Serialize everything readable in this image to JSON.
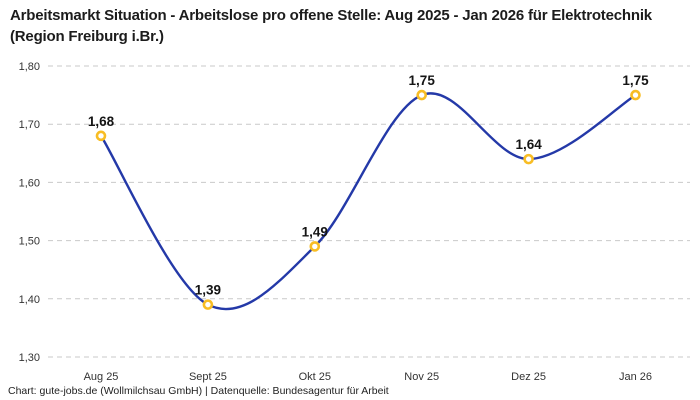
{
  "header": {
    "title": "Arbeitsmarkt Situation - Arbeitslose pro offene Stelle: Aug 2025 - Jan 2026 für Elektrotechnik (Region Freiburg i.Br.)"
  },
  "footer": {
    "credit": "Chart: gute-jobs.de (Wollmilchsau GmbH) | Datenquelle: Bundesagentur für Arbeit"
  },
  "chart_data": {
    "type": "line",
    "title": "Arbeitsmarkt Situation - Arbeitslose pro offene Stelle: Aug 2025 - Jan 2026 für Elektrotechnik (Region Freiburg i.Br.)",
    "categories": [
      "Aug 25",
      "Sept 25",
      "Okt 25",
      "Nov 25",
      "Dez 25",
      "Jan 26"
    ],
    "series": [
      {
        "name": "Arbeitslose pro offene Stelle",
        "values": [
          1.68,
          1.39,
          1.49,
          1.75,
          1.64,
          1.75
        ],
        "point_labels": [
          "1,68",
          "1,39",
          "1,49",
          "1,75",
          "1,64",
          "1,75"
        ]
      }
    ],
    "xlabel": "",
    "ylabel": "",
    "ylim": [
      1.3,
      1.8
    ],
    "y_ticks": [
      {
        "value": 1.8,
        "label": "1,80"
      },
      {
        "value": 1.7,
        "label": "1,70"
      },
      {
        "value": 1.6,
        "label": "1,60"
      },
      {
        "value": 1.5,
        "label": "1,50"
      },
      {
        "value": 1.4,
        "label": "1,40"
      },
      {
        "value": 1.3,
        "label": "1,30"
      }
    ],
    "grid": "horizontal-dashed",
    "legend": "none",
    "curve": "smooth",
    "marker": "open-circle",
    "colors": {
      "line": "#2439A8",
      "marker_stroke": "#F8BD24",
      "marker_fill": "#FFFFFF",
      "grid": "#C9C9C9",
      "point_label_text": "#141414",
      "axis_text": "#333333",
      "title_text": "#1C1C1C"
    }
  }
}
